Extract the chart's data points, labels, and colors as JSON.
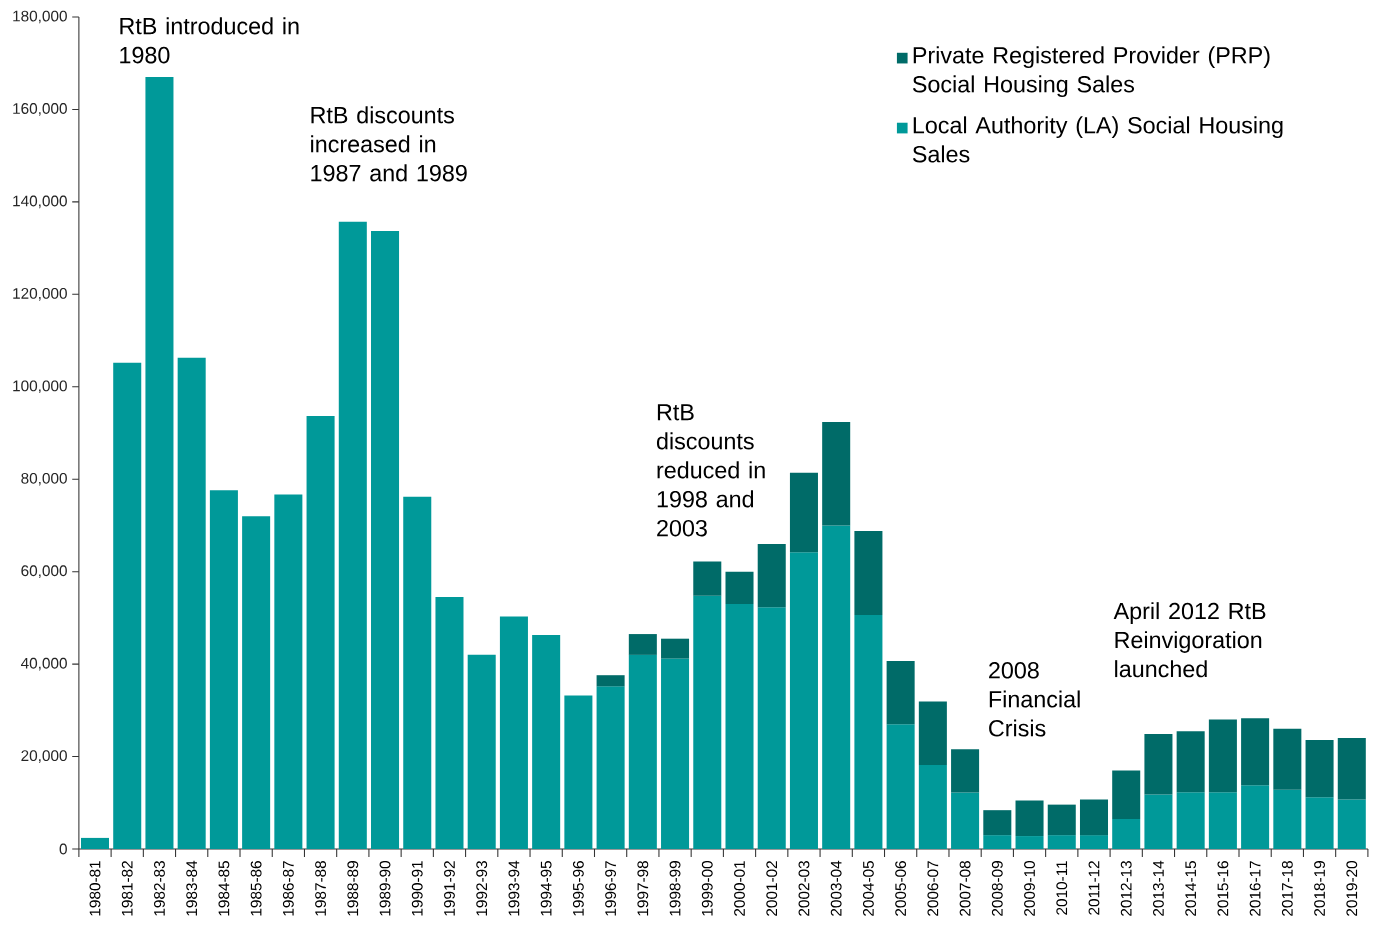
{
  "chart_data": {
    "type": "bar",
    "stacked": true,
    "categories": [
      "1980-81",
      "1981-82",
      "1982-83",
      "1983-84",
      "1984-85",
      "1985-86",
      "1986-87",
      "1987-88",
      "1988-89",
      "1989-90",
      "1990-91",
      "1991-92",
      "1992-93",
      "1993-94",
      "1994-95",
      "1995-96",
      "1996-97",
      "1997-98",
      "1998-99",
      "1999-00",
      "2000-01",
      "2001-02",
      "2002-03",
      "2003-04",
      "2004-05",
      "2005-06",
      "2006-07",
      "2007-08",
      "2008-09",
      "2009-10",
      "2010-11",
      "2011-12",
      "2012-13",
      "2013-14",
      "2014-15",
      "2015-16",
      "2016-17",
      "2017-18",
      "2018-19",
      "2019-20"
    ],
    "series": [
      {
        "name": "Local Authority (LA) Social Housing Sales",
        "color": "#009999",
        "values": [
          2400,
          105200,
          167000,
          106300,
          77600,
          72000,
          76700,
          93700,
          135700,
          133700,
          76200,
          54500,
          42000,
          50300,
          46300,
          33200,
          35200,
          42000,
          41200,
          54800,
          53000,
          52300,
          64200,
          70000,
          50600,
          27000,
          18200,
          12200,
          3000,
          2800,
          3000,
          3000,
          6500,
          11800,
          12300,
          12300,
          13800,
          12800,
          11200,
          10700
        ]
      },
      {
        "name": "Private Registered Provider (PRP) Social Housing Sales",
        "color": "#006b68",
        "values": [
          null,
          null,
          null,
          null,
          null,
          null,
          null,
          null,
          null,
          null,
          null,
          null,
          null,
          null,
          null,
          null,
          2400,
          4500,
          4300,
          7400,
          7000,
          13700,
          17200,
          22400,
          18200,
          13700,
          13700,
          9400,
          5400,
          7700,
          6600,
          7700,
          10500,
          13100,
          13200,
          15700,
          14500,
          13200,
          12400,
          13300
        ]
      }
    ],
    "ylim": [
      0,
      180000
    ],
    "yticks": [
      0,
      {
        "value": 20000,
        "label": "20,000"
      },
      {
        "value": 40000,
        "label": "40,000"
      },
      {
        "value": 60000,
        "label": "60,000"
      },
      {
        "value": 80000,
        "label": "80,000"
      },
      {
        "value": 100000,
        "label": "100,000"
      },
      {
        "value": 120000,
        "label": "120,000"
      },
      {
        "value": 140000,
        "label": "140,000"
      },
      {
        "value": 160000,
        "label": "160,000"
      },
      {
        "value": 180000,
        "label": "180,000"
      }
    ],
    "legend": "top right",
    "annotations": [
      "RtB introduced in 1980",
      "RtB discounts increased  in 1987 and 1989",
      "RtB discounts reduced in 1998 and 2003",
      "2008 Financial Crisis",
      "April 2012 RtB Reinvigoration launched"
    ]
  }
}
